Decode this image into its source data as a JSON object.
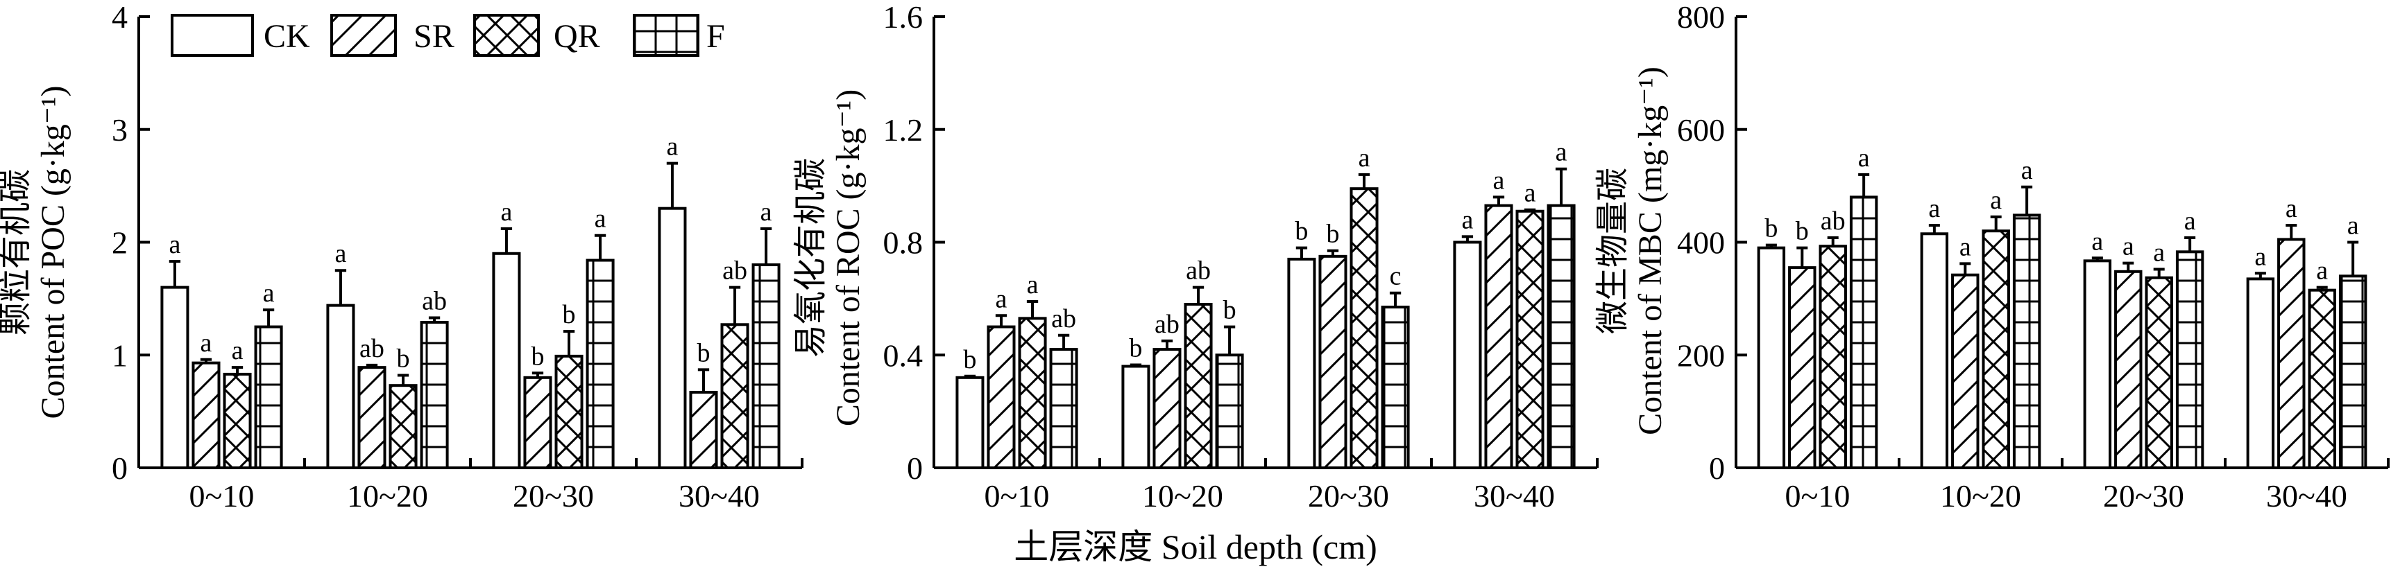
{
  "x_axis_title": "土层深度 Soil depth (cm)",
  "legend": [
    "CK",
    "SR",
    "QR",
    "F"
  ],
  "patterns": [
    "blank",
    "back-diagonal",
    "cross-hatch",
    "grid"
  ],
  "colors": {
    "ink": "#000000",
    "bar_fill": "#ffffff"
  },
  "chart_data": [
    {
      "type": "bar",
      "ylabel_cn": "颗粒有机碳",
      "ylabel_en": "Content of POC (g·kg⁻¹)",
      "categories": [
        "0~10",
        "10~20",
        "20~30",
        "30~40"
      ],
      "ylim": [
        0,
        4
      ],
      "yticks": [
        0,
        1,
        2,
        3,
        4
      ],
      "ytick_labels": [
        "0",
        "1",
        "2",
        "3",
        "4"
      ],
      "series": [
        {
          "name": "CK",
          "values": [
            1.6,
            1.44,
            1.9,
            2.3
          ],
          "errors": [
            0.23,
            0.31,
            0.22,
            0.4
          ],
          "labels": [
            "a",
            "a",
            "a",
            "a"
          ]
        },
        {
          "name": "SR",
          "values": [
            0.93,
            0.89,
            0.8,
            0.67
          ],
          "errors": [
            0.03,
            0.02,
            0.04,
            0.2
          ],
          "labels": [
            "a",
            "ab",
            "b",
            "b"
          ]
        },
        {
          "name": "QR",
          "values": [
            0.83,
            0.73,
            0.99,
            1.27
          ],
          "errors": [
            0.06,
            0.09,
            0.22,
            0.33
          ],
          "labels": [
            "a",
            "b",
            "b",
            "ab"
          ]
        },
        {
          "name": "F",
          "values": [
            1.25,
            1.29,
            1.84,
            1.8
          ],
          "errors": [
            0.15,
            0.04,
            0.22,
            0.32
          ],
          "labels": [
            "a",
            "ab",
            "a",
            "a"
          ]
        }
      ]
    },
    {
      "type": "bar",
      "ylabel_cn": "易氧化有机碳",
      "ylabel_en": "Content of ROC (g·kg⁻¹)",
      "categories": [
        "0~10",
        "10~20",
        "20~30",
        "30~40"
      ],
      "ylim": [
        0,
        1.6
      ],
      "yticks": [
        0,
        0.4,
        0.8,
        1.2,
        1.6
      ],
      "ytick_labels": [
        "0",
        "0.4",
        "0.8",
        "1.2",
        "1.6"
      ],
      "series": [
        {
          "name": "CK",
          "values": [
            0.32,
            0.36,
            0.74,
            0.8
          ],
          "errors": [
            0.005,
            0.005,
            0.04,
            0.02
          ],
          "labels": [
            "b",
            "b",
            "b",
            "a"
          ]
        },
        {
          "name": "SR",
          "values": [
            0.5,
            0.42,
            0.75,
            0.93
          ],
          "errors": [
            0.04,
            0.03,
            0.02,
            0.03
          ],
          "labels": [
            "a",
            "ab",
            "b",
            "a"
          ]
        },
        {
          "name": "QR",
          "values": [
            0.53,
            0.58,
            0.99,
            0.91
          ],
          "errors": [
            0.06,
            0.06,
            0.05,
            0.005
          ],
          "labels": [
            "a",
            "ab",
            "a",
            "a"
          ]
        },
        {
          "name": "F",
          "values": [
            0.42,
            0.4,
            0.57,
            0.93
          ],
          "errors": [
            0.05,
            0.1,
            0.05,
            0.13
          ],
          "labels": [
            "ab",
            "b",
            "c",
            "a"
          ]
        }
      ]
    },
    {
      "type": "bar",
      "ylabel_cn": "微生物量碳",
      "ylabel_en": "Content of MBC (mg·kg⁻¹)",
      "categories": [
        "0~10",
        "10~20",
        "20~30",
        "30~40"
      ],
      "ylim": [
        0,
        800
      ],
      "yticks": [
        0,
        200,
        400,
        600,
        800
      ],
      "ytick_labels": [
        "0",
        "200",
        "400",
        "600",
        "800"
      ],
      "series": [
        {
          "name": "CK",
          "values": [
            390,
            415,
            367,
            335
          ],
          "errors": [
            5,
            15,
            5,
            10
          ],
          "labels": [
            "b",
            "a",
            "a",
            "a"
          ]
        },
        {
          "name": "SR",
          "values": [
            355,
            342,
            348,
            405
          ],
          "errors": [
            35,
            20,
            15,
            25
          ],
          "labels": [
            "b",
            "a",
            "a",
            "a"
          ]
        },
        {
          "name": "QR",
          "values": [
            393,
            420,
            337,
            315
          ],
          "errors": [
            15,
            25,
            15,
            5
          ],
          "labels": [
            "ab",
            "a",
            "a",
            "a"
          ]
        },
        {
          "name": "F",
          "values": [
            480,
            448,
            383,
            340
          ],
          "errors": [
            40,
            50,
            25,
            60
          ],
          "labels": [
            "a",
            "a",
            "a",
            "a"
          ]
        }
      ]
    }
  ]
}
